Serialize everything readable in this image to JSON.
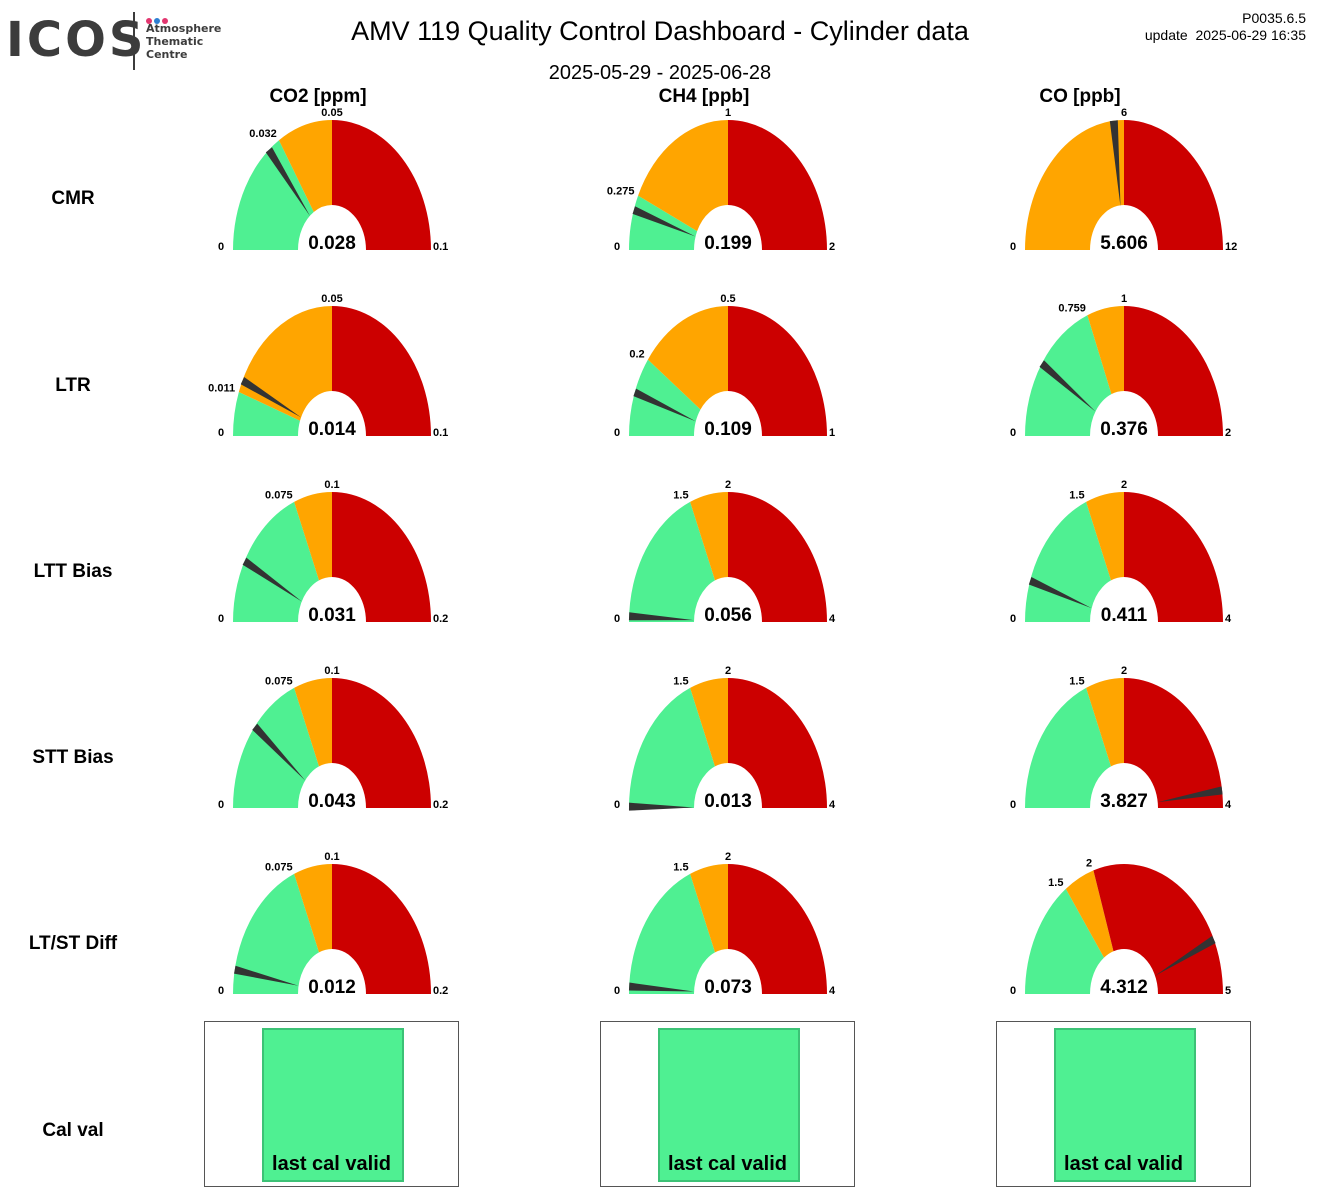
{
  "header": {
    "logo": {
      "word": "ICOS",
      "subtitle": "Atmosphere\nThematic\nCentre",
      "dot_colors": [
        "#e2366f",
        "#2d7fd2",
        "#e2366f"
      ]
    },
    "title": "AMV 119 Quality Control Dashboard - Cylinder data",
    "date_range": "2025-05-29 - 2025-06-28",
    "version": "P0035.6.5",
    "update": "update  2025-06-29 16:35"
  },
  "colors": {
    "green": "#4ff092",
    "orange": "#ffa500",
    "red": "#cc0000",
    "needle": "#333333"
  },
  "columns": [
    "CO2 [ppm]",
    "CH4 [ppb]",
    "CO [ppb]"
  ],
  "rows": [
    "CMR",
    "LTR",
    "LTT Bias",
    "STT Bias",
    "LT/ST Diff",
    "Cal val"
  ],
  "chart_data": [
    {
      "type": "gauge",
      "row": "CMR",
      "column": "CO2 [ppm]",
      "min_label": "0",
      "max_label": "0.1",
      "thresholds": [
        {
          "value": 0.032,
          "label": "0.032"
        },
        {
          "value": 0.05,
          "label": "0.05"
        }
      ],
      "value": 0.028,
      "value_label": "0.028"
    },
    {
      "type": "gauge",
      "row": "CMR",
      "column": "CH4 [ppb]",
      "min_label": "0",
      "max_label": "2",
      "thresholds": [
        {
          "value": 0.275,
          "label": "0.275"
        },
        {
          "value": 1,
          "label": "1"
        }
      ],
      "value": 0.199,
      "value_label": "0.199"
    },
    {
      "type": "gauge",
      "row": "CMR",
      "column": "CO [ppb]",
      "min_label": "0",
      "max_label": "12",
      "thresholds": [
        {
          "value": 0,
          "label": ""
        },
        {
          "value": 6,
          "label": "6"
        }
      ],
      "value": 5.606,
      "value_label": "5.606"
    },
    {
      "type": "gauge",
      "row": "LTR",
      "column": "CO2 [ppm]",
      "min_label": "0",
      "max_label": "0.1",
      "thresholds": [
        {
          "value": 0.011,
          "label": "0.011"
        },
        {
          "value": 0.05,
          "label": "0.05"
        }
      ],
      "value": 0.014,
      "value_label": "0.014"
    },
    {
      "type": "gauge",
      "row": "LTR",
      "column": "CH4 [ppb]",
      "min_label": "0",
      "max_label": "1",
      "thresholds": [
        {
          "value": 0.2,
          "label": "0.2"
        },
        {
          "value": 0.5,
          "label": "0.5"
        }
      ],
      "value": 0.109,
      "value_label": "0.109"
    },
    {
      "type": "gauge",
      "row": "LTR",
      "column": "CO [ppb]",
      "min_label": "0",
      "max_label": "2",
      "thresholds": [
        {
          "value": 0.759,
          "label": "0.759"
        },
        {
          "value": 1,
          "label": "1"
        }
      ],
      "value": 0.376,
      "value_label": "0.376"
    },
    {
      "type": "gauge",
      "row": "LTT Bias",
      "column": "CO2 [ppm]",
      "min_label": "0",
      "max_label": "0.2",
      "thresholds": [
        {
          "value": 0.075,
          "label": "0.075"
        },
        {
          "value": 0.1,
          "label": "0.1"
        }
      ],
      "value": 0.031,
      "value_label": "0.031"
    },
    {
      "type": "gauge",
      "row": "LTT Bias",
      "column": "CH4 [ppb]",
      "min_label": "0",
      "max_label": "4",
      "thresholds": [
        {
          "value": 1.5,
          "label": "1.5"
        },
        {
          "value": 2,
          "label": "2"
        }
      ],
      "value": 0.056,
      "value_label": "0.056"
    },
    {
      "type": "gauge",
      "row": "LTT Bias",
      "column": "CO [ppb]",
      "min_label": "0",
      "max_label": "4",
      "thresholds": [
        {
          "value": 1.5,
          "label": "1.5"
        },
        {
          "value": 2,
          "label": "2"
        }
      ],
      "value": 0.411,
      "value_label": "0.411"
    },
    {
      "type": "gauge",
      "row": "STT Bias",
      "column": "CO2 [ppm]",
      "min_label": "0",
      "max_label": "0.2",
      "thresholds": [
        {
          "value": 0.075,
          "label": "0.075"
        },
        {
          "value": 0.1,
          "label": "0.1"
        }
      ],
      "value": 0.043,
      "value_label": "0.043"
    },
    {
      "type": "gauge",
      "row": "STT Bias",
      "column": "CH4 [ppb]",
      "min_label": "0",
      "max_label": "4",
      "thresholds": [
        {
          "value": 1.5,
          "label": "1.5"
        },
        {
          "value": 2,
          "label": "2"
        }
      ],
      "value": 0.013,
      "value_label": "0.013"
    },
    {
      "type": "gauge",
      "row": "STT Bias",
      "column": "CO [ppb]",
      "min_label": "0",
      "max_label": "4",
      "thresholds": [
        {
          "value": 1.5,
          "label": "1.5"
        },
        {
          "value": 2,
          "label": "2"
        }
      ],
      "value": 3.827,
      "value_label": "3.827"
    },
    {
      "type": "gauge",
      "row": "LT/ST Diff",
      "column": "CO2 [ppm]",
      "min_label": "0",
      "max_label": "0.2",
      "thresholds": [
        {
          "value": 0.075,
          "label": "0.075"
        },
        {
          "value": 0.1,
          "label": "0.1"
        }
      ],
      "value": 0.012,
      "value_label": "0.012"
    },
    {
      "type": "gauge",
      "row": "LT/ST Diff",
      "column": "CH4 [ppb]",
      "min_label": "0",
      "max_label": "4",
      "thresholds": [
        {
          "value": 1.5,
          "label": "1.5"
        },
        {
          "value": 2,
          "label": "2"
        }
      ],
      "value": 0.073,
      "value_label": "0.073"
    },
    {
      "type": "gauge",
      "row": "LT/ST Diff",
      "column": "CO [ppb]",
      "min_label": "0",
      "max_label": "5",
      "thresholds": [
        {
          "value": 1.5,
          "label": "1.5"
        },
        {
          "value": 2,
          "label": "2"
        }
      ],
      "value": 4.312,
      "value_label": "4.312"
    }
  ],
  "cal_val": [
    {
      "column": "CO2 [ppm]",
      "status": "last cal valid",
      "color": "#4ff092"
    },
    {
      "column": "CH4 [ppb]",
      "status": "last cal valid",
      "color": "#4ff092"
    },
    {
      "column": "CO [ppb]",
      "status": "last cal valid",
      "color": "#4ff092"
    }
  ]
}
